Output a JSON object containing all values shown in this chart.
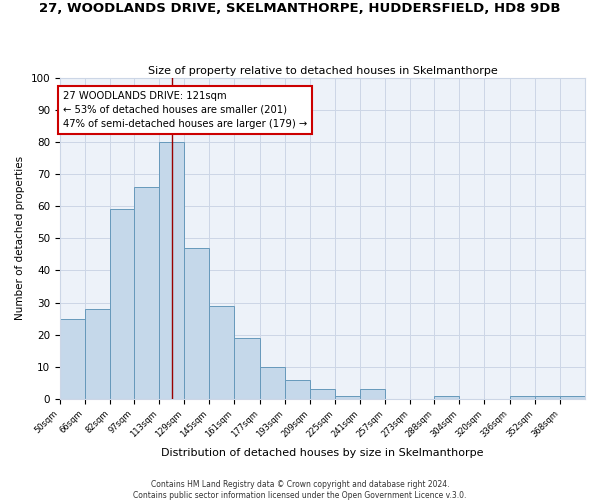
{
  "title": "27, WOODLANDS DRIVE, SKELMANTHORPE, HUDDERSFIELD, HD8 9DB",
  "subtitle": "Size of property relative to detached houses in Skelmanthorpe",
  "xlabel": "Distribution of detached houses by size in Skelmanthorpe",
  "ylabel": "Number of detached properties",
  "bin_labels": [
    "50sqm",
    "66sqm",
    "82sqm",
    "97sqm",
    "113sqm",
    "129sqm",
    "145sqm",
    "161sqm",
    "177sqm",
    "193sqm",
    "209sqm",
    "225sqm",
    "241sqm",
    "257sqm",
    "273sqm",
    "288sqm",
    "304sqm",
    "320sqm",
    "336sqm",
    "352sqm",
    "368sqm"
  ],
  "bin_edges": [
    50,
    66,
    82,
    97,
    113,
    129,
    145,
    161,
    177,
    193,
    209,
    225,
    241,
    257,
    273,
    288,
    304,
    320,
    336,
    352,
    368,
    384
  ],
  "counts": [
    25,
    28,
    59,
    66,
    80,
    47,
    29,
    19,
    10,
    6,
    3,
    1,
    3,
    0,
    0,
    1,
    0,
    0,
    1,
    1,
    1
  ],
  "bar_facecolor": "#c5d8ea",
  "bar_edgecolor": "#6699bb",
  "grid_color": "#ccd6e6",
  "bg_color": "#edf2f9",
  "vline_x": 121,
  "vline_color": "#990000",
  "annotation_text": "27 WOODLANDS DRIVE: 121sqm\n← 53% of detached houses are smaller (201)\n47% of semi-detached houses are larger (179) →",
  "annotation_box_edgecolor": "#cc0000",
  "ylim": [
    0,
    100
  ],
  "yticks": [
    0,
    10,
    20,
    30,
    40,
    50,
    60,
    70,
    80,
    90,
    100
  ],
  "footer1": "Contains HM Land Registry data © Crown copyright and database right 2024.",
  "footer2": "Contains public sector information licensed under the Open Government Licence v.3.0."
}
